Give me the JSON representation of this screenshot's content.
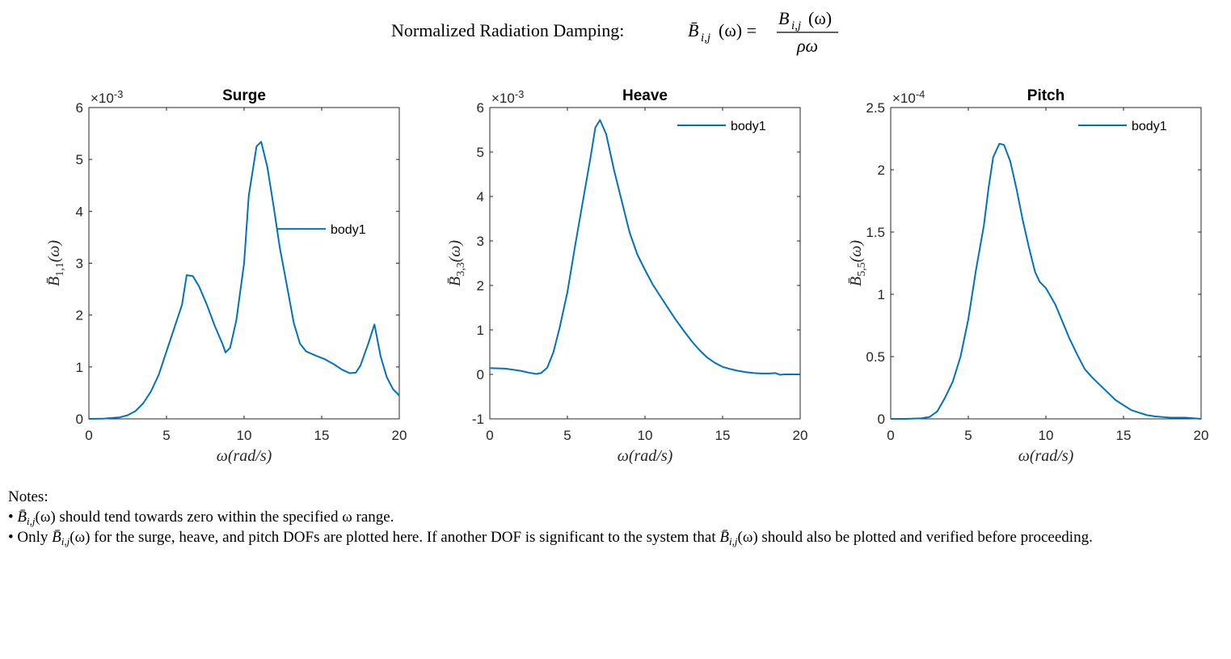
{
  "figure_title": {
    "text": "Normalized Radiation Damping:",
    "lhs": "B̄",
    "lhs_sub": "i,j",
    "lhs_rest": "(ω) =",
    "num": "B",
    "num_sub": "i,j",
    "num_rest": "(ω)",
    "den": "ρω"
  },
  "chart_data": [
    {
      "type": "line",
      "title": "Surge",
      "x_label": "ω(rad/s)",
      "y_label": {
        "main": "B̄",
        "sub": "1,1",
        "arg": "(ω)"
      },
      "y_exponent": {
        "base": "×10",
        "power": "-3"
      },
      "x": [
        0,
        1,
        2,
        2.5,
        3,
        3.5,
        4,
        4.5,
        5,
        5.5,
        6,
        6.3,
        6.7,
        7.1,
        7.6,
        8.1,
        8.6,
        8.8,
        9.1,
        9.5,
        10,
        10.3,
        10.8,
        11.1,
        11.5,
        11.9,
        12.3,
        12.8,
        13.2,
        13.6,
        14,
        14.6,
        15.2,
        15.8,
        16.3,
        16.8,
        17.2,
        17.5,
        18,
        18.4,
        18.8,
        19.2,
        19.6,
        20
      ],
      "series": [
        {
          "name": "body1",
          "color": "#0072bd",
          "values": [
            0,
            0.005,
            0.03,
            0.07,
            0.15,
            0.3,
            0.53,
            0.85,
            1.3,
            1.75,
            2.2,
            2.77,
            2.75,
            2.55,
            2.2,
            1.8,
            1.45,
            1.28,
            1.37,
            1.9,
            3.0,
            4.3,
            5.25,
            5.34,
            4.85,
            4.1,
            3.3,
            2.5,
            1.85,
            1.45,
            1.3,
            1.22,
            1.15,
            1.05,
            0.95,
            0.88,
            0.89,
            1.03,
            1.45,
            1.82,
            1.2,
            0.8,
            0.57,
            0.45
          ]
        }
      ],
      "xlim": [
        0,
        20
      ],
      "ylim": [
        0,
        6
      ],
      "xticks": [
        0,
        5,
        10,
        15,
        20
      ],
      "yticks": [
        0,
        1,
        2,
        3,
        4,
        5,
        6
      ],
      "legend": "east"
    },
    {
      "type": "line",
      "title": "Heave",
      "x_label": "ω(rad/s)",
      "y_label": {
        "main": "B̄",
        "sub": "3,3",
        "arg": "(ω)"
      },
      "y_exponent": {
        "base": "×10",
        "power": "-3"
      },
      "x": [
        0,
        1,
        2,
        2.5,
        3,
        3.3,
        3.7,
        4.1,
        4.5,
        5,
        5.5,
        6,
        6.5,
        6.8,
        7.1,
        7.5,
        8,
        8.5,
        9,
        9.5,
        10,
        10.5,
        11,
        11.5,
        12,
        12.5,
        13,
        13.5,
        14,
        14.5,
        15,
        15.5,
        16,
        16.5,
        17,
        17.5,
        18,
        18.4,
        18.7,
        19,
        20
      ],
      "series": [
        {
          "name": "body1",
          "color": "#0072bd",
          "values": [
            0.14,
            0.13,
            0.08,
            0.04,
            0.01,
            0.03,
            0.15,
            0.5,
            1.05,
            1.85,
            2.9,
            3.9,
            4.9,
            5.55,
            5.72,
            5.4,
            4.6,
            3.9,
            3.2,
            2.7,
            2.35,
            2.02,
            1.75,
            1.48,
            1.22,
            0.98,
            0.75,
            0.55,
            0.38,
            0.26,
            0.17,
            0.12,
            0.08,
            0.05,
            0.03,
            0.02,
            0.02,
            0.03,
            -0.01,
            0,
            0
          ]
        }
      ],
      "xlim": [
        0,
        20
      ],
      "ylim": [
        -1,
        6
      ],
      "xticks": [
        0,
        5,
        10,
        15,
        20
      ],
      "yticks": [
        -1,
        0,
        1,
        2,
        3,
        4,
        5,
        6
      ],
      "legend": "northeast"
    },
    {
      "type": "line",
      "title": "Pitch",
      "x_label": "ω(rad/s)",
      "y_label": {
        "main": "B̄",
        "sub": "5,5",
        "arg": "(ω)"
      },
      "y_exponent": {
        "base": "×10",
        "power": "-4"
      },
      "x": [
        0,
        1,
        2,
        2.5,
        3,
        3.5,
        4,
        4.5,
        5,
        5.5,
        6,
        6.3,
        6.6,
        7,
        7.3,
        7.7,
        8.1,
        8.5,
        8.9,
        9.3,
        9.6,
        10,
        10.6,
        11,
        11.5,
        12,
        12.5,
        13,
        13.5,
        14,
        14.5,
        15,
        15.5,
        16,
        16.5,
        17,
        17.5,
        18,
        19,
        20
      ],
      "series": [
        {
          "name": "body1",
          "color": "#0072bd",
          "values": [
            0,
            0,
            0.005,
            0.015,
            0.06,
            0.17,
            0.3,
            0.5,
            0.8,
            1.2,
            1.55,
            1.85,
            2.1,
            2.21,
            2.2,
            2.07,
            1.85,
            1.6,
            1.38,
            1.18,
            1.1,
            1.05,
            0.92,
            0.8,
            0.65,
            0.52,
            0.4,
            0.33,
            0.27,
            0.21,
            0.15,
            0.11,
            0.07,
            0.05,
            0.03,
            0.02,
            0.015,
            0.01,
            0.01,
            0
          ]
        }
      ],
      "xlim": [
        0,
        20
      ],
      "ylim": [
        0,
        2.5
      ],
      "xticks": [
        0,
        5,
        10,
        15,
        20
      ],
      "yticks": [
        0,
        0.5,
        1,
        1.5,
        2,
        2.5
      ],
      "legend": "northeast"
    }
  ],
  "notes": {
    "heading": "Notes:",
    "items": [
      [
        "• ",
        {
          "base": "B̄",
          "sub": "i,j"
        },
        "(ω) should tend towards zero within the specified ω range."
      ],
      [
        "• Only ",
        {
          "base": "B̄",
          "sub": "i,j"
        },
        "(ω) for the surge, heave, and pitch DOFs are plotted here. If another DOF is significant to the system that ",
        {
          "base": "B̄",
          "sub": "i,j"
        },
        "(ω) should also be plotted and verified before proceeding."
      ]
    ]
  }
}
